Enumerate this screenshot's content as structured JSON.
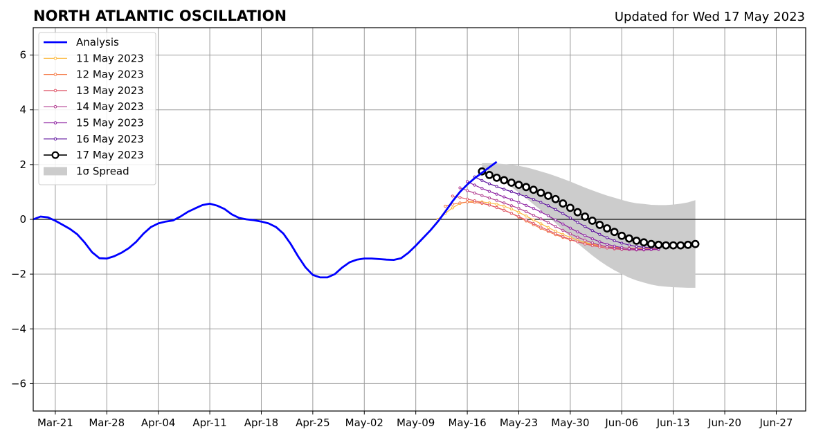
{
  "chart_data": {
    "type": "line",
    "title": "NORTH ATLANTIC OSCILLATION",
    "subtitle": "Updated for Wed 17 May 2023",
    "x_start": "2023-03-18",
    "x_end": "2023-07-01",
    "ylim": [
      -7,
      7
    ],
    "yticks": [
      -6,
      -4,
      -2,
      0,
      2,
      4,
      6
    ],
    "ytick_labels": [
      "−6",
      "−4",
      "−2",
      "0",
      "2",
      "4",
      "6"
    ],
    "xticks": [
      "2023-03-21",
      "2023-03-28",
      "2023-04-04",
      "2023-04-11",
      "2023-04-18",
      "2023-04-25",
      "2023-05-02",
      "2023-05-09",
      "2023-05-16",
      "2023-05-23",
      "2023-05-30",
      "2023-06-06",
      "2023-06-13",
      "2023-06-20",
      "2023-06-27"
    ],
    "xtick_labels": [
      "Mar-21",
      "Mar-28",
      "Apr-04",
      "Apr-11",
      "Apr-18",
      "Apr-25",
      "May-02",
      "May-09",
      "May-16",
      "May-23",
      "May-30",
      "Jun-06",
      "Jun-13",
      "Jun-20",
      "Jun-27"
    ],
    "grid": true,
    "legend_position": "top-left",
    "analysis": {
      "name": "Analysis",
      "color": "#0000ff",
      "start": "2023-03-18",
      "values": [
        0.0,
        0.1,
        0.07,
        -0.05,
        -0.2,
        -0.35,
        -0.55,
        -0.85,
        -1.2,
        -1.42,
        -1.43,
        -1.35,
        -1.22,
        -1.05,
        -0.82,
        -0.52,
        -0.28,
        -0.15,
        -0.08,
        -0.04,
        0.1,
        0.27,
        0.4,
        0.52,
        0.57,
        0.5,
        0.38,
        0.18,
        0.05,
        0.0,
        -0.03,
        -0.08,
        -0.15,
        -0.28,
        -0.52,
        -0.9,
        -1.35,
        -1.75,
        -2.03,
        -2.12,
        -2.12,
        -2.0,
        -1.76,
        -1.57,
        -1.47,
        -1.43,
        -1.43,
        -1.45,
        -1.47,
        -1.48,
        -1.42,
        -1.22,
        -0.96,
        -0.68,
        -0.4,
        -0.08,
        0.28,
        0.66,
        1.0,
        1.27,
        1.5,
        1.7,
        1.9,
        2.1
      ]
    },
    "forecasts": [
      {
        "name": "11 May 2023",
        "color": "#fcb73a",
        "start": "2023-05-12",
        "values": [
          0.0,
          0.22,
          0.42,
          0.58,
          0.64,
          0.66,
          0.64,
          0.6,
          0.55,
          0.48,
          0.38,
          0.26,
          0.12,
          -0.02,
          -0.16,
          -0.3,
          -0.43,
          -0.55,
          -0.66,
          -0.76,
          -0.84,
          -0.91,
          -0.96,
          -1.0,
          -1.03,
          -1.05,
          -1.06,
          -1.07,
          -1.07,
          -1.06,
          -1.05
        ]
      },
      {
        "name": "12 May 2023",
        "color": "#f57d4a",
        "start": "2023-05-13",
        "values": [
          0.48,
          0.55,
          0.6,
          0.63,
          0.62,
          0.58,
          0.52,
          0.44,
          0.34,
          0.22,
          0.08,
          -0.06,
          -0.2,
          -0.33,
          -0.45,
          -0.56,
          -0.66,
          -0.75,
          -0.82,
          -0.88,
          -0.93,
          -0.97,
          -1.0,
          -1.02,
          -1.04,
          -1.05,
          -1.06,
          -1.06,
          -1.06,
          -1.05
        ]
      },
      {
        "name": "13 May 2023",
        "color": "#df5a6c",
        "start": "2023-05-14",
        "values": [
          0.85,
          0.8,
          0.74,
          0.68,
          0.6,
          0.52,
          0.43,
          0.33,
          0.22,
          0.1,
          -0.02,
          -0.15,
          -0.28,
          -0.4,
          -0.52,
          -0.63,
          -0.73,
          -0.82,
          -0.9,
          -0.96,
          -1.01,
          -1.05,
          -1.08,
          -1.1,
          -1.11,
          -1.11,
          -1.11,
          -1.1,
          -1.09
        ]
      },
      {
        "name": "14 May 2023",
        "color": "#b13b8f",
        "start": "2023-05-15",
        "values": [
          1.15,
          1.05,
          0.96,
          0.87,
          0.78,
          0.69,
          0.6,
          0.5,
          0.4,
          0.28,
          0.15,
          0.02,
          -0.12,
          -0.26,
          -0.4,
          -0.53,
          -0.65,
          -0.76,
          -0.86,
          -0.94,
          -1.0,
          -1.05,
          -1.09,
          -1.11,
          -1.12,
          -1.12,
          -1.11,
          -1.1
        ]
      },
      {
        "name": "15 May 2023",
        "color": "#8c1fa0",
        "start": "2023-05-16",
        "values": [
          1.38,
          1.25,
          1.13,
          1.02,
          0.92,
          0.82,
          0.72,
          0.62,
          0.51,
          0.4,
          0.27,
          0.13,
          -0.02,
          -0.17,
          -0.32,
          -0.46,
          -0.59,
          -0.71,
          -0.82,
          -0.91,
          -0.98,
          -1.03,
          -1.07,
          -1.09,
          -1.1,
          -1.1,
          -1.09
        ]
      },
      {
        "name": "16 May 2023",
        "color": "#5b0f9c",
        "start": "2023-05-17",
        "values": [
          1.55,
          1.42,
          1.3,
          1.2,
          1.1,
          1.01,
          0.92,
          0.83,
          0.73,
          0.62,
          0.5,
          0.36,
          0.21,
          0.05,
          -0.11,
          -0.26,
          -0.41,
          -0.55,
          -0.67,
          -0.78,
          -0.87,
          -0.94,
          -0.99,
          -1.02,
          -1.04,
          -1.04
        ]
      },
      {
        "name": "17 May 2023",
        "color": "#000000",
        "start": "2023-05-18",
        "values": [
          1.75,
          1.62,
          1.52,
          1.43,
          1.34,
          1.26,
          1.18,
          1.08,
          0.97,
          0.86,
          0.74,
          0.58,
          0.42,
          0.26,
          0.1,
          -0.05,
          -0.2,
          -0.33,
          -0.46,
          -0.6,
          -0.7,
          -0.78,
          -0.84,
          -0.9,
          -0.93,
          -0.95,
          -0.95,
          -0.95,
          -0.93,
          -0.9
        ]
      }
    ],
    "spread": {
      "name": "1σ Spread",
      "color": "#cccccc",
      "start": "2023-05-18",
      "upper": [
        2.05,
        2.05,
        2.04,
        2.02,
        1.99,
        1.95,
        1.9,
        1.83,
        1.75,
        1.67,
        1.58,
        1.48,
        1.38,
        1.27,
        1.16,
        1.06,
        0.96,
        0.87,
        0.79,
        0.71,
        0.64,
        0.59,
        0.56,
        0.53,
        0.52,
        0.52,
        0.54,
        0.57,
        0.62,
        0.7
      ],
      "lower": [
        1.9,
        1.75,
        1.57,
        1.38,
        1.18,
        0.98,
        0.77,
        0.55,
        0.33,
        0.1,
        -0.14,
        -0.39,
        -0.64,
        -0.88,
        -1.1,
        -1.32,
        -1.52,
        -1.7,
        -1.86,
        -2.0,
        -2.13,
        -2.23,
        -2.31,
        -2.38,
        -2.43,
        -2.46,
        -2.48,
        -2.49,
        -2.5,
        -2.5
      ]
    },
    "legend": [
      "Analysis",
      "11 May 2023",
      "12 May 2023",
      "13 May 2023",
      "14 May 2023",
      "15 May 2023",
      "16 May 2023",
      "17 May 2023",
      "1σ Spread"
    ]
  }
}
